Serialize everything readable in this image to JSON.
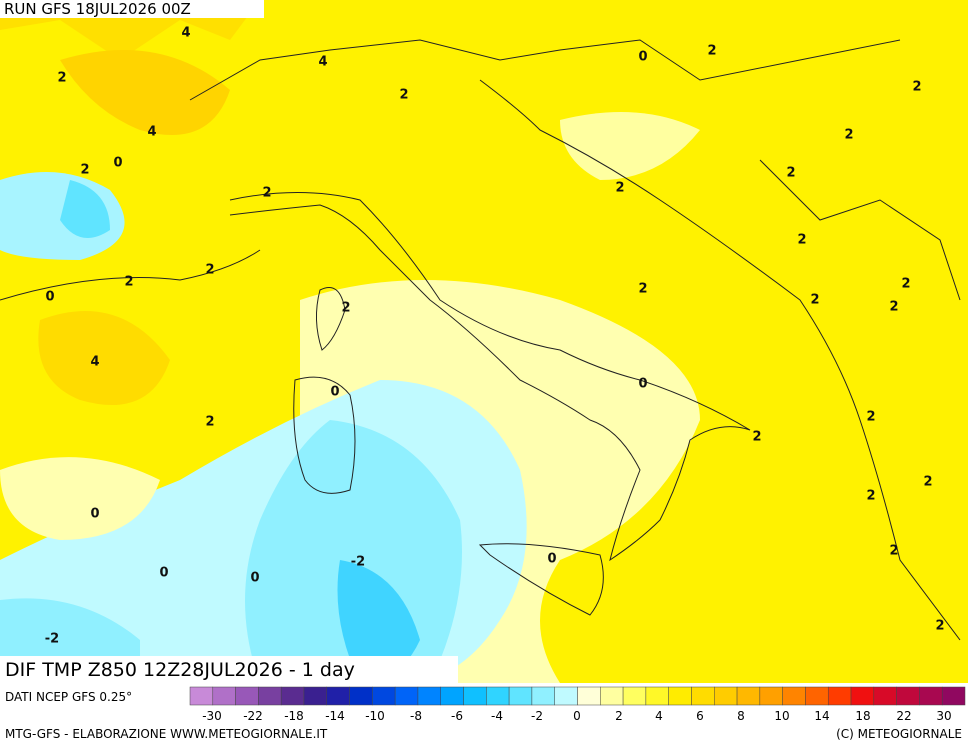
{
  "header": {
    "run": "RUN GFS 18JUL2026 00Z"
  },
  "map": {
    "contour_labels": [
      "4",
      "2",
      "4",
      "2",
      "0",
      "2",
      "2",
      "4",
      "2",
      "0",
      "2",
      "2",
      "2",
      "2",
      "2",
      "2",
      "2",
      "0",
      "2",
      "2",
      "2",
      "2",
      "2",
      "4",
      "0",
      "0",
      "2",
      "2",
      "2",
      "2",
      "2",
      "0",
      "2",
      "0",
      "-2",
      "0",
      "0",
      "2",
      "-2"
    ]
  },
  "caption": "DIF TMP Z850 12Z28JUL2026 - 1 day",
  "source": "DATI NCEP GFS 0.25°",
  "colorbar": {
    "colors": [
      "#c88ad8",
      "#b070c8",
      "#9858b8",
      "#7840a0",
      "#5a2c90",
      "#3a2090",
      "#2020a8",
      "#0030c8",
      "#0048e0",
      "#0064f8",
      "#0084ff",
      "#00a4ff",
      "#10c0ff",
      "#30d4ff",
      "#60e4ff",
      "#90f0ff",
      "#c0faff",
      "#ffffd8",
      "#ffffa0",
      "#ffff60",
      "#fff828",
      "#ffec00",
      "#ffdc00",
      "#ffcc00",
      "#ffb800",
      "#ffa000",
      "#ff8400",
      "#ff6400",
      "#ff3c00",
      "#f01010",
      "#d80a28",
      "#c0083c",
      "#a80850",
      "#900860"
    ],
    "ticks": [
      -30,
      -22,
      -18,
      -14,
      -10,
      -8,
      -6,
      -4,
      -2,
      0,
      2,
      4,
      6,
      8,
      10,
      14,
      18,
      22,
      30
    ]
  },
  "footer": {
    "left": "MTG-GFS - ELABORAZIONE WWW.METEOGIORNALE.IT",
    "right": "(C) METEOGIORNALE"
  }
}
